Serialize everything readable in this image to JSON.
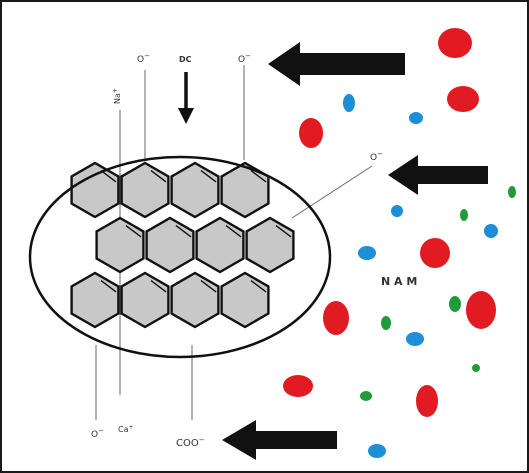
{
  "labels": {
    "na": "Na",
    "na_sup": "+",
    "oh_top": "O",
    "oh_top_sup": "−",
    "dc": "DC",
    "oh_right": "O",
    "oh_right_sup": "−",
    "oh_mid": "O",
    "oh_mid_sup": "−",
    "oh_bottom": "O",
    "oh_bottom_sup": "−",
    "ca": "Ca",
    "ca_sup": "+",
    "coo": "COO",
    "coo_sup": "−",
    "nam": "N A M"
  },
  "colors": {
    "hexagon_fill": "#c8c8c8",
    "red_particle": "#e21b22",
    "blue_particle": "#1c8fd6",
    "green_particle": "#1f9c3a",
    "arrow": "#111111"
  }
}
